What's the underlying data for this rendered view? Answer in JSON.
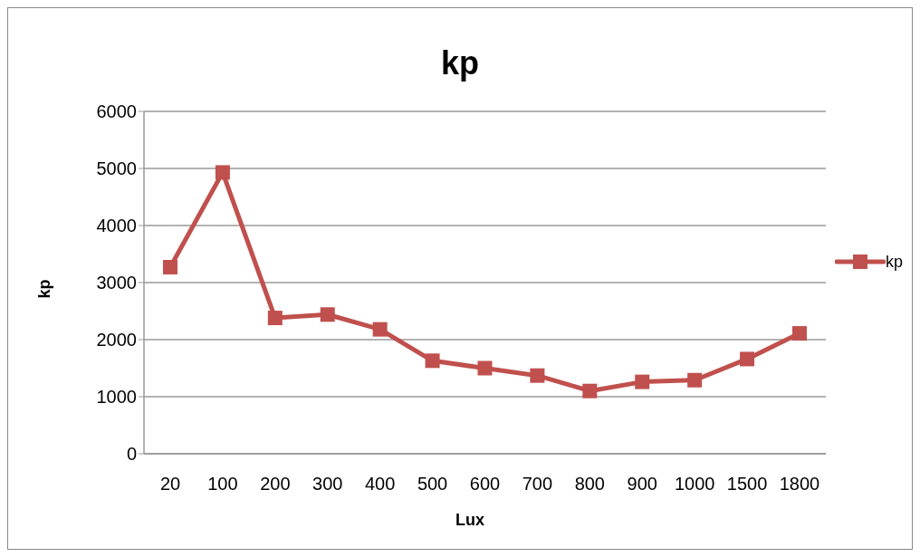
{
  "chart_data": {
    "type": "line",
    "title": "kp",
    "xlabel": "Lux",
    "ylabel": "kp",
    "categories": [
      "20",
      "100",
      "200",
      "300",
      "400",
      "500",
      "600",
      "700",
      "800",
      "900",
      "1000",
      "1500",
      "1800"
    ],
    "series": [
      {
        "name": "kp",
        "color": "#c0504d",
        "values": [
          3270,
          4930,
          2380,
          2440,
          2180,
          1630,
          1500,
          1370,
          1100,
          1260,
          1290,
          1660,
          2110
        ]
      }
    ],
    "ylim": [
      0,
      6000
    ],
    "yticks": [
      0,
      1000,
      2000,
      3000,
      4000,
      5000,
      6000
    ],
    "grid": "y",
    "legend": "right",
    "marker": "square",
    "line_style": "solid"
  }
}
